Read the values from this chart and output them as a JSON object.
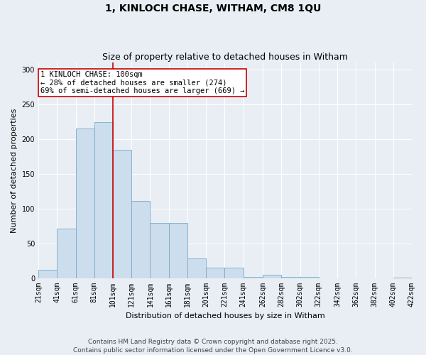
{
  "title": "1, KINLOCH CHASE, WITHAM, CM8 1QU",
  "subtitle": "Size of property relative to detached houses in Witham",
  "xlabel": "Distribution of detached houses by size in Witham",
  "ylabel": "Number of detached properties",
  "bins": [
    21,
    41,
    61,
    81,
    101,
    121,
    141,
    161,
    181,
    201,
    221,
    241,
    262,
    282,
    302,
    322,
    342,
    362,
    382,
    402,
    422
  ],
  "counts": [
    12,
    71,
    215,
    224,
    184,
    111,
    79,
    79,
    28,
    15,
    15,
    2,
    5,
    2,
    2,
    0,
    0,
    0,
    0,
    1
  ],
  "bar_color": "#ccdded",
  "bar_edge_color": "#7aaac8",
  "vline_x": 101,
  "vline_color": "#cc0000",
  "annotation_text": "1 KINLOCH CHASE: 100sqm\n← 28% of detached houses are smaller (274)\n69% of semi-detached houses are larger (669) →",
  "annotation_box_color": "#ffffff",
  "annotation_box_edge": "#cc0000",
  "ylim": [
    0,
    310
  ],
  "yticks": [
    0,
    50,
    100,
    150,
    200,
    250,
    300
  ],
  "tick_labels": [
    "21sqm",
    "41sqm",
    "61sqm",
    "81sqm",
    "101sqm",
    "121sqm",
    "141sqm",
    "161sqm",
    "181sqm",
    "201sqm",
    "221sqm",
    "241sqm",
    "262sqm",
    "282sqm",
    "302sqm",
    "322sqm",
    "342sqm",
    "362sqm",
    "382sqm",
    "402sqm",
    "422sqm"
  ],
  "footer_text": "Contains HM Land Registry data © Crown copyright and database right 2025.\nContains public sector information licensed under the Open Government Licence v3.0.",
  "bg_color": "#e8eef4",
  "grid_color": "#ffffff",
  "title_fontsize": 10,
  "subtitle_fontsize": 9,
  "axis_label_fontsize": 8,
  "tick_fontsize": 7,
  "footer_fontsize": 6.5,
  "annotation_fontsize": 7.5
}
